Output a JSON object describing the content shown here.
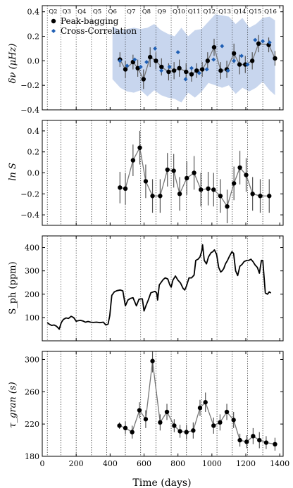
{
  "chart_data": [
    {
      "type": "scatter",
      "panel": "delta_nu",
      "ylabel": "δν (μHz)",
      "ylim": [
        -0.4,
        0.45
      ],
      "yticks": [
        -0.4,
        -0.2,
        0.0,
        0.2,
        0.4
      ],
      "ytick_labels": [
        "−0.4",
        "−0.2",
        "0.0",
        "0.2",
        "0.4"
      ],
      "quarter_labels": [
        "Q2",
        "Q3",
        "Q4",
        "Q5",
        "Q6",
        "Q7",
        "Q8",
        "Q9",
        "Q10",
        "Q11",
        "Q12",
        "Q13",
        "Q14",
        "Q15",
        "Q16"
      ],
      "quarter_starts": [
        30,
        110,
        200,
        290,
        380,
        490,
        580,
        670,
        760,
        850,
        940,
        1030,
        1120,
        1210,
        1300
      ],
      "legend": [
        "Peak-bagging",
        "Cross-Correlation"
      ],
      "band": {
        "x": [
          414,
          460,
          500,
          540,
          580,
          620,
          660,
          700,
          740,
          780,
          820,
          860,
          900,
          940,
          980,
          1020,
          1060,
          1100,
          1140,
          1180,
          1220,
          1260,
          1300,
          1340,
          1372
        ],
        "upper": [
          0.28,
          0.25,
          0.26,
          0.27,
          0.26,
          0.27,
          0.3,
          0.25,
          0.22,
          0.2,
          0.27,
          0.2,
          0.25,
          0.26,
          0.32,
          0.38,
          0.37,
          0.36,
          0.3,
          0.35,
          0.27,
          0.3,
          0.35,
          0.36,
          0.33
        ],
        "lower": [
          -0.15,
          -0.22,
          -0.25,
          -0.26,
          -0.24,
          -0.29,
          -0.24,
          -0.28,
          -0.3,
          -0.31,
          -0.34,
          -0.26,
          -0.3,
          -0.25,
          -0.18,
          -0.2,
          -0.22,
          -0.2,
          -0.27,
          -0.22,
          -0.25,
          -0.22,
          -0.17,
          -0.24,
          -0.28
        ]
      },
      "series": [
        {
          "name": "Peak-bagging",
          "x": [
            458,
            490,
            535,
            563,
            597,
            636,
            670,
            703,
            745,
            777,
            808,
            848,
            880,
            910,
            943,
            975,
            1013,
            1052,
            1088,
            1130,
            1163,
            1197,
            1238,
            1275,
            1335,
            1372
          ],
          "y": [
            0.01,
            -0.07,
            -0.01,
            -0.06,
            -0.15,
            0.03,
            0.0,
            -0.05,
            -0.09,
            -0.08,
            -0.06,
            -0.09,
            -0.11,
            -0.08,
            -0.07,
            -0.0,
            0.11,
            -0.08,
            -0.07,
            0.06,
            -0.03,
            -0.03,
            0.0,
            0.14,
            0.13,
            0.02
          ],
          "err": [
            0.06,
            0.07,
            0.06,
            0.07,
            0.08,
            0.08,
            0.07,
            0.07,
            0.07,
            0.07,
            0.07,
            0.07,
            0.06,
            0.06,
            0.06,
            0.07,
            0.07,
            0.07,
            0.07,
            0.08,
            0.08,
            0.07,
            0.07,
            0.07,
            0.06,
            0.06
          ]
        },
        {
          "name": "Cross-Correlation",
          "x": [
            458,
            500,
            545,
            580,
            615,
            665,
            702,
            750,
            800,
            845,
            880,
            925,
            970,
            1010,
            1060,
            1095,
            1130,
            1175,
            1210,
            1255,
            1300,
            1340
          ],
          "y": [
            0.0,
            -0.04,
            0.01,
            -0.05,
            -0.01,
            0.1,
            -0.08,
            -0.05,
            0.07,
            -0.15,
            -0.06,
            -0.1,
            -0.07,
            0.01,
            0.12,
            -0.08,
            0.0,
            0.04,
            -0.03,
            0.17,
            0.16,
            0.15
          ]
        }
      ]
    },
    {
      "type": "line",
      "panel": "lnS",
      "ylabel": "ln S",
      "ylim": [
        -0.5,
        0.5
      ],
      "yticks": [
        -0.4,
        -0.2,
        0.0,
        0.2,
        0.4
      ],
      "ytick_labels": [
        "−0.4",
        "−0.2",
        "0.0",
        "0.2",
        "0.4"
      ],
      "series": [
        {
          "name": "",
          "x": [
            458,
            490,
            535,
            575,
            610,
            650,
            695,
            738,
            775,
            810,
            852,
            895,
            935,
            978,
            1010,
            1050,
            1090,
            1130,
            1165,
            1202,
            1240,
            1285,
            1338
          ],
          "y": [
            -0.14,
            -0.15,
            0.12,
            0.24,
            -0.08,
            -0.22,
            -0.22,
            0.03,
            0.02,
            -0.2,
            -0.05,
            0.0,
            -0.16,
            -0.15,
            -0.16,
            -0.22,
            -0.32,
            -0.1,
            0.05,
            -0.02,
            -0.2,
            -0.22,
            -0.22
          ],
          "err": [
            0.15,
            0.15,
            0.15,
            0.16,
            0.16,
            0.16,
            0.16,
            0.16,
            0.16,
            0.16,
            0.16,
            0.16,
            0.16,
            0.16,
            0.16,
            0.16,
            0.16,
            0.16,
            0.16,
            0.16,
            0.16,
            0.16,
            0.16
          ]
        }
      ]
    },
    {
      "type": "line",
      "panel": "Sph",
      "ylabel": "S_ph (ppm)",
      "ylim": [
        0,
        450
      ],
      "yticks": [
        100,
        200,
        300,
        400
      ],
      "ytick_labels": [
        "100",
        "200",
        "300",
        "400"
      ],
      "series": [
        {
          "name": "",
          "x": [
            30,
            40,
            55,
            70,
            85,
            100,
            112,
            125,
            140,
            155,
            170,
            185,
            200,
            210,
            225,
            240,
            255,
            270,
            285,
            300,
            320,
            340,
            360,
            375,
            388,
            398,
            405,
            410,
            415,
            425,
            440,
            460,
            475,
            490,
            505,
            520,
            535,
            555,
            570,
            582,
            590,
            600,
            612,
            625,
            640,
            655,
            665,
            675,
            680,
            690,
            700,
            712,
            725,
            740,
            752,
            760,
            770,
            785,
            800,
            815,
            830,
            840,
            850,
            865,
            880,
            895,
            905,
            918,
            930,
            940,
            945,
            955,
            968,
            980,
            995,
            1005,
            1015,
            1028,
            1040,
            1052,
            1060,
            1070,
            1080,
            1092,
            1105,
            1118,
            1128,
            1140,
            1152,
            1165,
            1178,
            1190,
            1205,
            1218,
            1230,
            1242,
            1255,
            1268,
            1280,
            1292,
            1300,
            1315,
            1328,
            1338,
            1348
          ],
          "y": [
            78,
            72,
            66,
            68,
            62,
            50,
            78,
            92,
            98,
            96,
            105,
            100,
            84,
            86,
            88,
            85,
            80,
            83,
            80,
            79,
            80,
            78,
            80,
            68,
            72,
            108,
            160,
            195,
            200,
            210,
            215,
            218,
            214,
            150,
            175,
            182,
            185,
            150,
            178,
            180,
            180,
            128,
            152,
            175,
            206,
            210,
            212,
            205,
            175,
            240,
            250,
            262,
            270,
            265,
            240,
            230,
            260,
            278,
            260,
            248,
            225,
            218,
            235,
            270,
            270,
            282,
            345,
            350,
            360,
            385,
            412,
            345,
            330,
            360,
            378,
            382,
            390,
            370,
            315,
            295,
            300,
            310,
            330,
            345,
            365,
            382,
            375,
            300,
            280,
            320,
            328,
            340,
            345,
            345,
            350,
            340,
            325,
            315,
            290,
            345,
            345,
            205,
            200,
            210,
            205
          ]
        }
      ]
    },
    {
      "type": "line",
      "panel": "tau_gran",
      "xlabel": "Time (days)",
      "ylabel": "τ_gran (s)",
      "xlim": [
        0,
        1420
      ],
      "xticks": [
        0,
        200,
        400,
        600,
        800,
        1000,
        1200,
        1400
      ],
      "ylim": [
        180,
        310
      ],
      "yticks": [
        180,
        220,
        260,
        300
      ],
      "ytick_labels": [
        "180",
        "220",
        "260",
        "300"
      ],
      "series": [
        {
          "name": "",
          "x": [
            455,
            490,
            530,
            573,
            610,
            650,
            695,
            735,
            778,
            812,
            850,
            890,
            930,
            962,
            1010,
            1048,
            1088,
            1128,
            1165,
            1205,
            1243,
            1280,
            1320,
            1372
          ],
          "y": [
            218,
            215,
            210,
            237,
            226,
            298,
            222,
            235,
            218,
            211,
            210,
            212,
            240,
            247,
            218,
            222,
            235,
            225,
            200,
            198,
            205,
            200,
            197,
            195
          ],
          "err": [
            4,
            8,
            8,
            10,
            11,
            14,
            10,
            10,
            8,
            8,
            9,
            10,
            10,
            12,
            10,
            10,
            10,
            10,
            8,
            8,
            10,
            10,
            8,
            8
          ]
        }
      ]
    }
  ],
  "xlabel_text": "Time (days)",
  "xtick_labels": [
    "0",
    "200",
    "400",
    "600",
    "800",
    "1000",
    "1200",
    "1400"
  ],
  "colors": {
    "band": "#c8d6ee",
    "cross_correlation": "#1f5fb4",
    "peak_bagging": "#000000",
    "connector": "#777777",
    "error_bar": "#555555"
  }
}
